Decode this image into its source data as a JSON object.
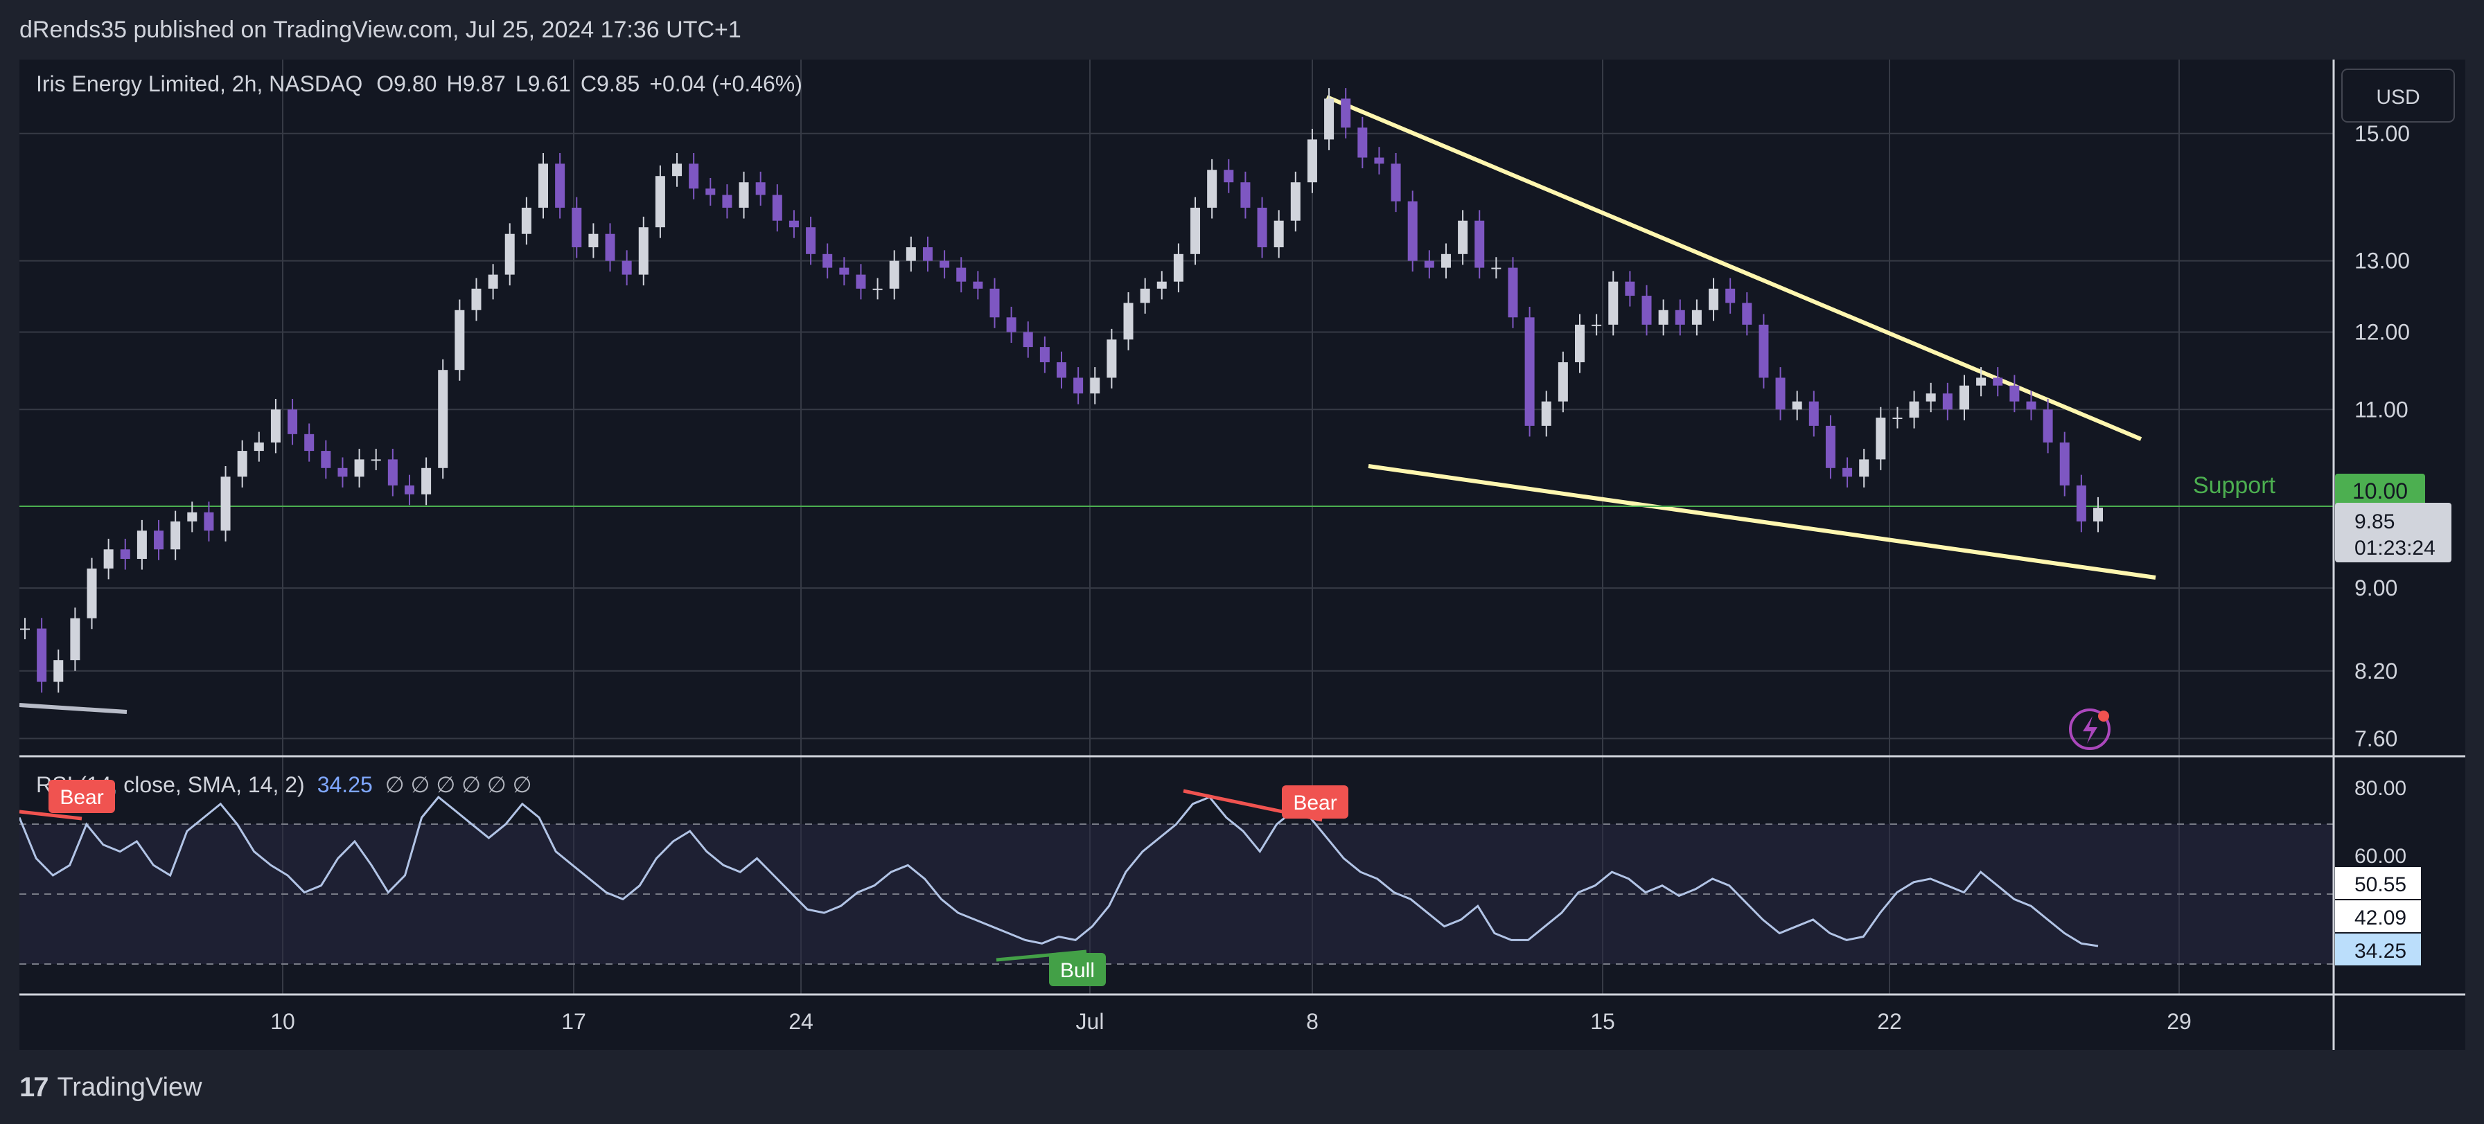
{
  "header": {
    "published": "dRends35 published on TradingView.com, Jul 25, 2024 17:36 UTC+1"
  },
  "legend": {
    "symbol": "Iris Energy Limited, 2h, NASDAQ",
    "open": "O9.80",
    "high": "H9.87",
    "low": "L9.61",
    "close": "C9.85",
    "change": "+0.04 (+0.46%)"
  },
  "currency_button": "USD",
  "price_axis": {
    "ticks": [
      "15.00",
      "13.00",
      "12.00",
      "11.00",
      "9.00",
      "8.20",
      "7.60"
    ]
  },
  "support": {
    "label": "Support",
    "value": "10.00"
  },
  "last_price": {
    "value": "9.85",
    "countdown": "01:23:24"
  },
  "rsi": {
    "label": "RSI (14, close, SMA, 14, 2)",
    "value": "34.25",
    "placeholders": "∅ ∅ ∅ ∅ ∅ ∅",
    "ticks": [
      "80.00",
      "60.00"
    ],
    "badges": [
      "50.55",
      "42.09",
      "34.25"
    ],
    "divergences": [
      "Bear",
      "Bear",
      "Bull"
    ]
  },
  "time_axis": {
    "labels": [
      "10",
      "17",
      "24",
      "Jul",
      "8",
      "15",
      "22",
      "29"
    ]
  },
  "brand": {
    "name": "TradingView"
  },
  "colors": {
    "background": "#131722",
    "grid": "#363a45",
    "text": "#d1d4dc",
    "up": "#d1d4dc",
    "down": "#7e57c2",
    "trendline": "#fff7b0",
    "support": "#4caf50",
    "rsi_line": "#b2c4e6",
    "bear": "#f05350",
    "bull": "#43a047"
  },
  "chart_data": {
    "type": "line",
    "title": "Iris Energy Limited, 2h, NASDAQ",
    "x_ticks": [
      "10",
      "17",
      "24",
      "Jul",
      "8",
      "15",
      "22",
      "29"
    ],
    "y_ticks": [
      "15.00",
      "13.00",
      "12.00",
      "11.00",
      "9.00",
      "8.20",
      "7.60"
    ],
    "y_scale": "log",
    "ylim": [
      7.45,
      16.3
    ],
    "series": [
      {
        "values": [
          8.6,
          8.1,
          8.3,
          8.7,
          9.2,
          9.4,
          9.3,
          9.6,
          9.4,
          9.7,
          9.8,
          9.6,
          10.2,
          10.5,
          10.6,
          11.0,
          10.7,
          10.5,
          10.3,
          10.2,
          10.4,
          10.4,
          10.1,
          10.0,
          10.3,
          11.5,
          12.3,
          12.6,
          12.8,
          13.4,
          13.8,
          14.5,
          13.8,
          13.2,
          13.4,
          13.0,
          12.8,
          13.5,
          14.3,
          14.5,
          14.1,
          14.0,
          13.8,
          14.2,
          14.0,
          13.6,
          13.5,
          13.1,
          12.9,
          12.8,
          12.6,
          12.6,
          13.0,
          13.2,
          13.0,
          12.9,
          12.7,
          12.6,
          12.2,
          12.0,
          11.8,
          11.6,
          11.4,
          11.2,
          11.4,
          11.9,
          12.4,
          12.6,
          12.7,
          13.1,
          13.8,
          14.4,
          14.2,
          13.8,
          13.2,
          13.6,
          14.2,
          14.9,
          15.6,
          15.1,
          14.6,
          14.5,
          13.9,
          13.0,
          12.9,
          13.1,
          13.6,
          12.9,
          12.9,
          12.2,
          10.8,
          11.1,
          11.6,
          12.1,
          12.1,
          12.7,
          12.5,
          12.1,
          12.3,
          12.1,
          12.3,
          12.6,
          12.4,
          12.1,
          11.4,
          11.0,
          11.1,
          10.8,
          10.3,
          10.2,
          10.4,
          10.9,
          10.9,
          11.1,
          11.2,
          11.0,
          11.3,
          11.4,
          11.3,
          11.1,
          11.0,
          10.6,
          10.1,
          9.7,
          9.85
        ]
      },
      {
        "name": "RSI (14, close, SMA, 14, 2)",
        "values": [
          72,
          60,
          55,
          58,
          70,
          64,
          62,
          65,
          58,
          55,
          68,
          72,
          76,
          70,
          62,
          58,
          55,
          50,
          52,
          60,
          65,
          58,
          50,
          55,
          72,
          78,
          74,
          70,
          66,
          70,
          76,
          72,
          62,
          58,
          54,
          50,
          48,
          52,
          60,
          65,
          68,
          62,
          58,
          56,
          60,
          55,
          50,
          45,
          44,
          46,
          50,
          52,
          56,
          58,
          54,
          48,
          44,
          42,
          40,
          38,
          36,
          35,
          37,
          36,
          40,
          46,
          56,
          62,
          66,
          70,
          76,
          78,
          72,
          68,
          62,
          70,
          74,
          72,
          66,
          60,
          56,
          54,
          50,
          48,
          44,
          40,
          42,
          46,
          38,
          36,
          36,
          40,
          44,
          50,
          52,
          56,
          54,
          50,
          52,
          49,
          51,
          54,
          52,
          47,
          42,
          38,
          40,
          42,
          38,
          36,
          37,
          44,
          50,
          53,
          54,
          52,
          50,
          56,
          52,
          48,
          46,
          42,
          38,
          35,
          34.25
        ]
      }
    ],
    "rsi_ylim": [
      20,
      90
    ],
    "rsi_ticks": [
      "80.00",
      "60.00"
    ]
  }
}
